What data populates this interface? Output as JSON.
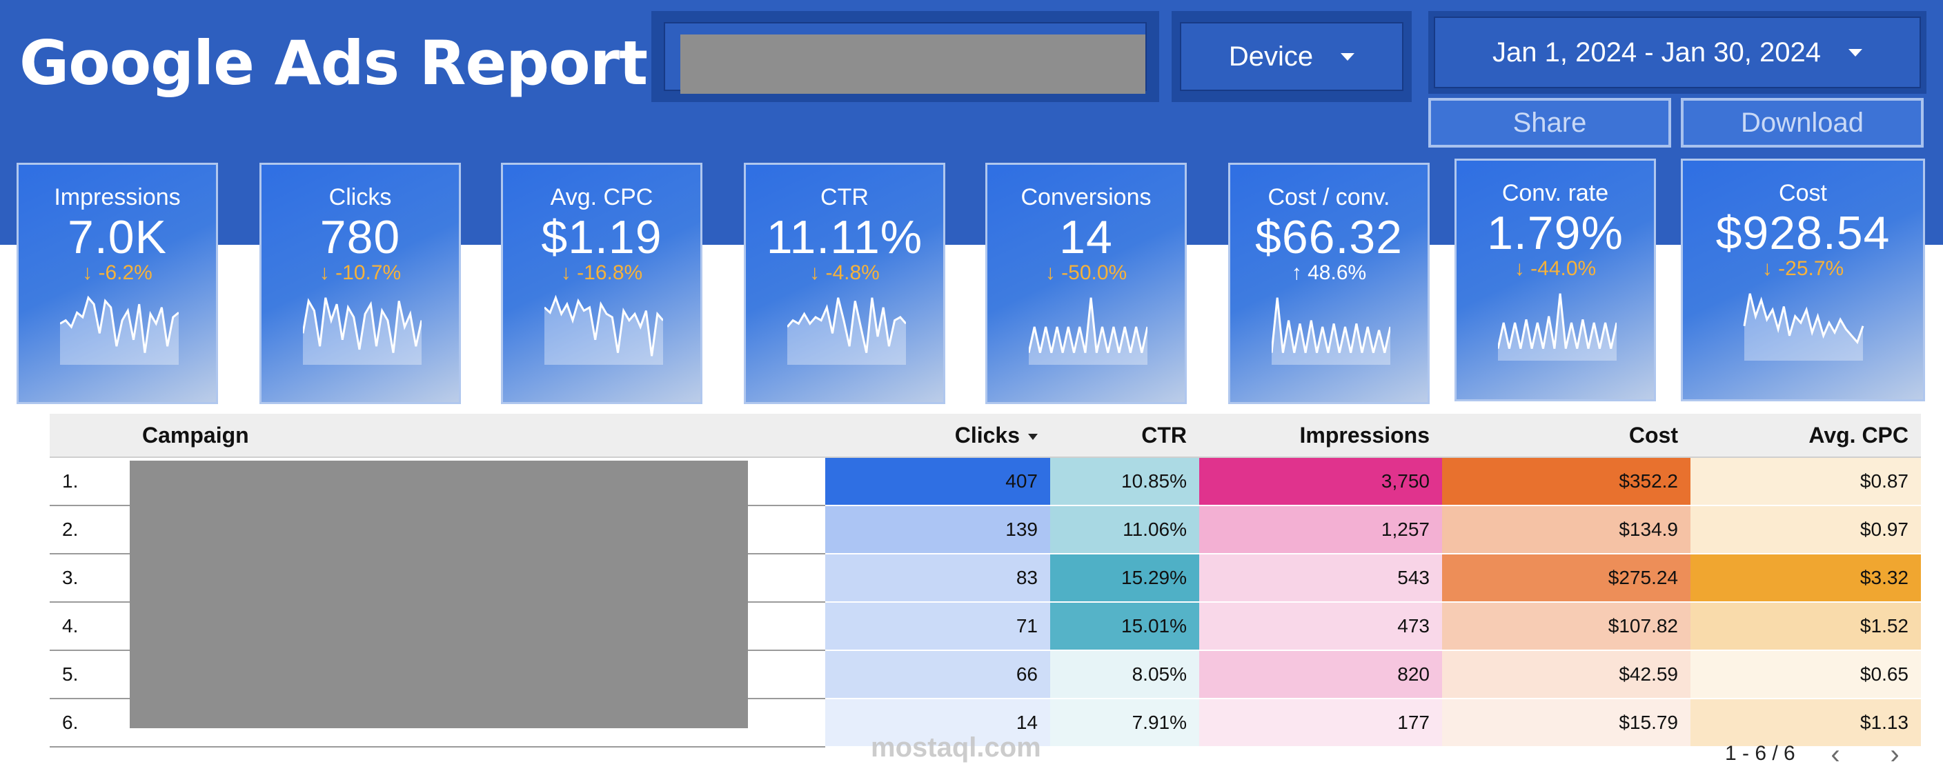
{
  "header": {
    "title": "Google Ads Report",
    "search": {
      "value": "",
      "placeholder": ""
    },
    "device_filter": {
      "label": "Device"
    },
    "date_range": {
      "label": "Jan 1, 2024 - Jan 30, 2024"
    },
    "share_label": "Share",
    "download_label": "Download"
  },
  "colors": {
    "header_bg": "#2e5fbf",
    "delta_down": "#f6b23a",
    "delta_up": "#ffffff",
    "clicks_scale": "#2f6fe3",
    "ctr_scale": "#4fb0c6",
    "impressions_scale": "#e0338d",
    "cost_scale": "#e8712e",
    "cpc_scale": "#f0a630"
  },
  "kpis": [
    {
      "label": "Impressions",
      "value": "7.0K",
      "delta": "-6.2%",
      "direction": "down",
      "trend": [
        0.55,
        0.6,
        0.5,
        0.72,
        0.65,
        0.95,
        0.85,
        0.4,
        0.9,
        0.8,
        0.2,
        0.6,
        0.75,
        0.3,
        0.85,
        0.1,
        0.7,
        0.55,
        0.8,
        0.2,
        0.65,
        0.72
      ]
    },
    {
      "label": "Clicks",
      "value": "780",
      "delta": "-10.7%",
      "direction": "down",
      "trend": [
        0.4,
        0.9,
        0.75,
        0.2,
        0.95,
        0.6,
        0.85,
        0.3,
        0.8,
        0.65,
        0.15,
        0.7,
        0.85,
        0.2,
        0.75,
        0.6,
        0.1,
        0.9,
        0.5,
        0.7,
        0.2,
        0.6
      ]
    },
    {
      "label": "Avg. CPC",
      "value": "$1.19",
      "delta": "-16.8%",
      "direction": "down",
      "trend": [
        0.8,
        0.72,
        0.95,
        0.7,
        0.85,
        0.6,
        0.9,
        0.75,
        0.8,
        0.3,
        0.85,
        0.7,
        0.65,
        0.1,
        0.75,
        0.6,
        0.7,
        0.5,
        0.75,
        0.05,
        0.7,
        0.6
      ]
    },
    {
      "label": "CTR",
      "value": "11.11%",
      "delta": "-4.8%",
      "direction": "down",
      "trend": [
        0.5,
        0.6,
        0.55,
        0.7,
        0.55,
        0.65,
        0.6,
        0.8,
        0.4,
        0.95,
        0.6,
        0.2,
        0.9,
        0.5,
        0.1,
        0.95,
        0.35,
        0.8,
        0.2,
        0.6,
        0.65,
        0.55
      ]
    },
    {
      "label": "Conversions",
      "value": "14",
      "delta": "-50.0%",
      "direction": "down",
      "trend": [
        0.1,
        0.5,
        0.1,
        0.5,
        0.1,
        0.5,
        0.1,
        0.5,
        0.1,
        0.5,
        0.1,
        0.95,
        0.1,
        0.5,
        0.1,
        0.5,
        0.1,
        0.5,
        0.1,
        0.5,
        0.1,
        0.5
      ]
    },
    {
      "label": "Cost / conv.",
      "value": "$66.32",
      "delta": "48.6%",
      "direction": "up",
      "trend": [
        0.1,
        0.95,
        0.1,
        0.6,
        0.1,
        0.55,
        0.1,
        0.6,
        0.1,
        0.5,
        0.1,
        0.55,
        0.1,
        0.5,
        0.1,
        0.55,
        0.1,
        0.5,
        0.1,
        0.45,
        0.1,
        0.5
      ]
    },
    {
      "label": "Conv. rate",
      "value": "1.79%",
      "delta": "-44.0%",
      "direction": "down",
      "trend": [
        0.1,
        0.5,
        0.1,
        0.5,
        0.1,
        0.55,
        0.1,
        0.5,
        0.1,
        0.6,
        0.1,
        0.95,
        0.1,
        0.5,
        0.1,
        0.55,
        0.1,
        0.5,
        0.1,
        0.5,
        0.1,
        0.5
      ]
    },
    {
      "label": "Cost",
      "value": "$928.54",
      "delta": "-25.7%",
      "direction": "down",
      "trend": [
        0.45,
        0.95,
        0.6,
        0.85,
        0.55,
        0.7,
        0.4,
        0.75,
        0.3,
        0.6,
        0.5,
        0.7,
        0.35,
        0.6,
        0.3,
        0.5,
        0.35,
        0.55,
        0.4,
        0.3,
        0.2,
        0.45
      ]
    }
  ],
  "table": {
    "headers": {
      "campaign": "Campaign",
      "clicks": "Clicks",
      "ctr": "CTR",
      "impressions": "Impressions",
      "cost": "Cost",
      "avg_cpc": "Avg. CPC"
    },
    "rows": [
      {
        "index": "1.",
        "clicks": "407",
        "ctr": "10.85%",
        "impressions": "3,750",
        "cost": "$352.2",
        "avg_cpc": "$0.87"
      },
      {
        "index": "2.",
        "clicks": "139",
        "ctr": "11.06%",
        "impressions": "1,257",
        "cost": "$134.9",
        "avg_cpc": "$0.97"
      },
      {
        "index": "3.",
        "clicks": "83",
        "ctr": "15.29%",
        "impressions": "543",
        "cost": "$275.24",
        "avg_cpc": "$3.32"
      },
      {
        "index": "4.",
        "clicks": "71",
        "ctr": "15.01%",
        "impressions": "473",
        "cost": "$107.82",
        "avg_cpc": "$1.52"
      },
      {
        "index": "5.",
        "clicks": "66",
        "ctr": "8.05%",
        "impressions": "820",
        "cost": "$42.59",
        "avg_cpc": "$0.65"
      },
      {
        "index": "6.",
        "clicks": "14",
        "ctr": "7.91%",
        "impressions": "177",
        "cost": "$15.79",
        "avg_cpc": "$1.13"
      }
    ]
  },
  "pagination": {
    "label": "1 - 6 / 6"
  },
  "watermark": {
    "text": "mostaql.com"
  }
}
